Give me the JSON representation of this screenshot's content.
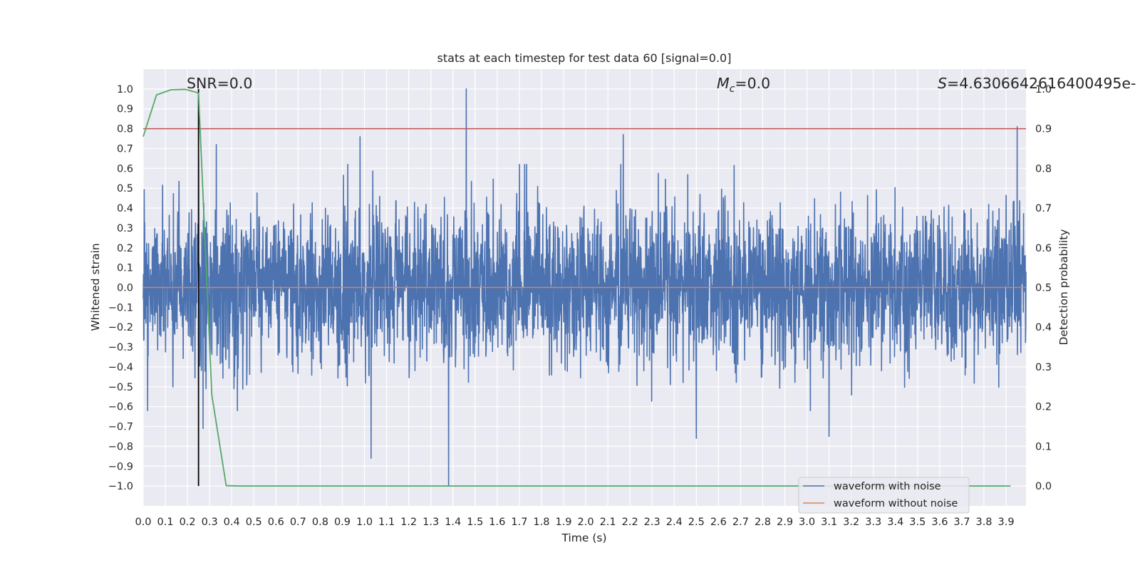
{
  "chart_data": {
    "type": "line",
    "title": "stats at each timestep for test data 60 [signal=0.0]",
    "xlabel": "Time (s)",
    "ylabel": "Whitened strain",
    "ylabel_right": "Detection probability",
    "xlim": [
      0.0,
      3.99
    ],
    "ylim": [
      -1.1,
      1.1
    ],
    "ylim_right": [
      -0.05,
      1.05
    ],
    "xticks": [
      0.0,
      0.1,
      0.2,
      0.3,
      0.4,
      0.5,
      0.6,
      0.7,
      0.8,
      0.9,
      1.0,
      1.1,
      1.2,
      1.3,
      1.4,
      1.5,
      1.6,
      1.7,
      1.8,
      1.9,
      2.0,
      2.1,
      2.2,
      2.3,
      2.4,
      2.5,
      2.6,
      2.7,
      2.8,
      2.9,
      3.0,
      3.1,
      3.2,
      3.3,
      3.4,
      3.5,
      3.6,
      3.7,
      3.8,
      3.9
    ],
    "xtick_labels": [
      "0.0",
      "0.1",
      "0.2",
      "0.3",
      "0.4",
      "0.5",
      "0.6",
      "0.7",
      "0.8",
      "0.9",
      "1.0",
      "1.1",
      "1.2",
      "1.3",
      "1.4",
      "1.5",
      "1.6",
      "1.7",
      "1.8",
      "1.9",
      "2.0",
      "2.1",
      "2.2",
      "2.3",
      "2.4",
      "2.5",
      "2.6",
      "2.7",
      "2.8",
      "2.9",
      "3.0",
      "3.1",
      "3.2",
      "3.3",
      "3.4",
      "3.5",
      "3.6",
      "3.7",
      "3.8",
      "3.9"
    ],
    "yticks": [
      1.0,
      0.9,
      0.8,
      0.7,
      0.6,
      0.5,
      0.4,
      0.3,
      0.2,
      0.1,
      0.0,
      -0.1,
      -0.2,
      -0.3,
      -0.4,
      -0.5,
      -0.6,
      -0.7,
      -0.8,
      -0.9,
      -1.0
    ],
    "ytick_labels": [
      "1.0",
      "0.9",
      "0.8",
      "0.7",
      "0.6",
      "0.5",
      "0.4",
      "0.3",
      "0.2",
      "0.1",
      "0.0",
      "−0.1",
      "−0.2",
      "−0.3",
      "−0.4",
      "−0.5",
      "−0.6",
      "−0.7",
      "−0.8",
      "−0.9",
      "−1.0"
    ],
    "yticks_right": [
      1.0,
      0.9,
      0.8,
      0.7,
      0.6,
      0.5,
      0.4,
      0.3,
      0.2,
      0.1,
      0.0
    ],
    "ytick_labels_right": [
      "1.0",
      "0.9",
      "0.8",
      "0.7",
      "0.6",
      "0.5",
      "0.4",
      "0.3",
      "0.2",
      "0.1",
      "0.0"
    ],
    "annotations": {
      "snr": "SNR=0.0",
      "mc_symbol": "M",
      "mc_subscript": "c",
      "mc_value": "=0.0",
      "s_symbol": "S",
      "s_value": "=4.630664261640049​5e-"
    },
    "series": [
      {
        "name": "waveform with noise",
        "axis": "left",
        "color": "#4c72b0",
        "style": "noise",
        "sample_rate_hz": 2048,
        "typical_amplitude": 0.35,
        "extremes": [
          {
            "x": 0.25,
            "y": 0.65
          },
          {
            "x": 0.27,
            "y": -0.71
          },
          {
            "x": 0.33,
            "y": 0.72
          },
          {
            "x": 0.98,
            "y": 0.76
          },
          {
            "x": 1.03,
            "y": -0.86
          },
          {
            "x": 1.38,
            "y": -1.0
          },
          {
            "x": 1.46,
            "y": 1.0
          },
          {
            "x": 2.17,
            "y": 0.77
          },
          {
            "x": 2.5,
            "y": -0.76
          },
          {
            "x": 3.1,
            "y": -0.75
          },
          {
            "x": 3.95,
            "y": 0.81
          }
        ]
      },
      {
        "name": "waveform without noise",
        "axis": "left",
        "color": "#dd8452",
        "x": [
          0.0,
          3.99
        ],
        "y": [
          0.0,
          0.0
        ]
      },
      {
        "name": "detection probability",
        "axis": "right",
        "color": "#55a868",
        "x": [
          0.0,
          0.06,
          0.125,
          0.19,
          0.25,
          0.31,
          0.375,
          0.44,
          3.92
        ],
        "y": [
          0.88,
          0.985,
          0.998,
          0.999,
          0.99,
          0.23,
          0.001,
          0.0,
          0.0
        ]
      }
    ],
    "threshold": {
      "axis": "right",
      "y": 0.9,
      "color": "#c44e52"
    },
    "marker_line": {
      "x": 0.25,
      "y_range": [
        -1.0,
        1.0
      ],
      "color": "#000000"
    },
    "legend": {
      "position": "lower-right",
      "entries": [
        {
          "label": "waveform with noise",
          "color": "#4c72b0"
        },
        {
          "label": "waveform without noise",
          "color": "#dd8452"
        }
      ]
    },
    "grid": true,
    "background": "#eaeaf2"
  }
}
